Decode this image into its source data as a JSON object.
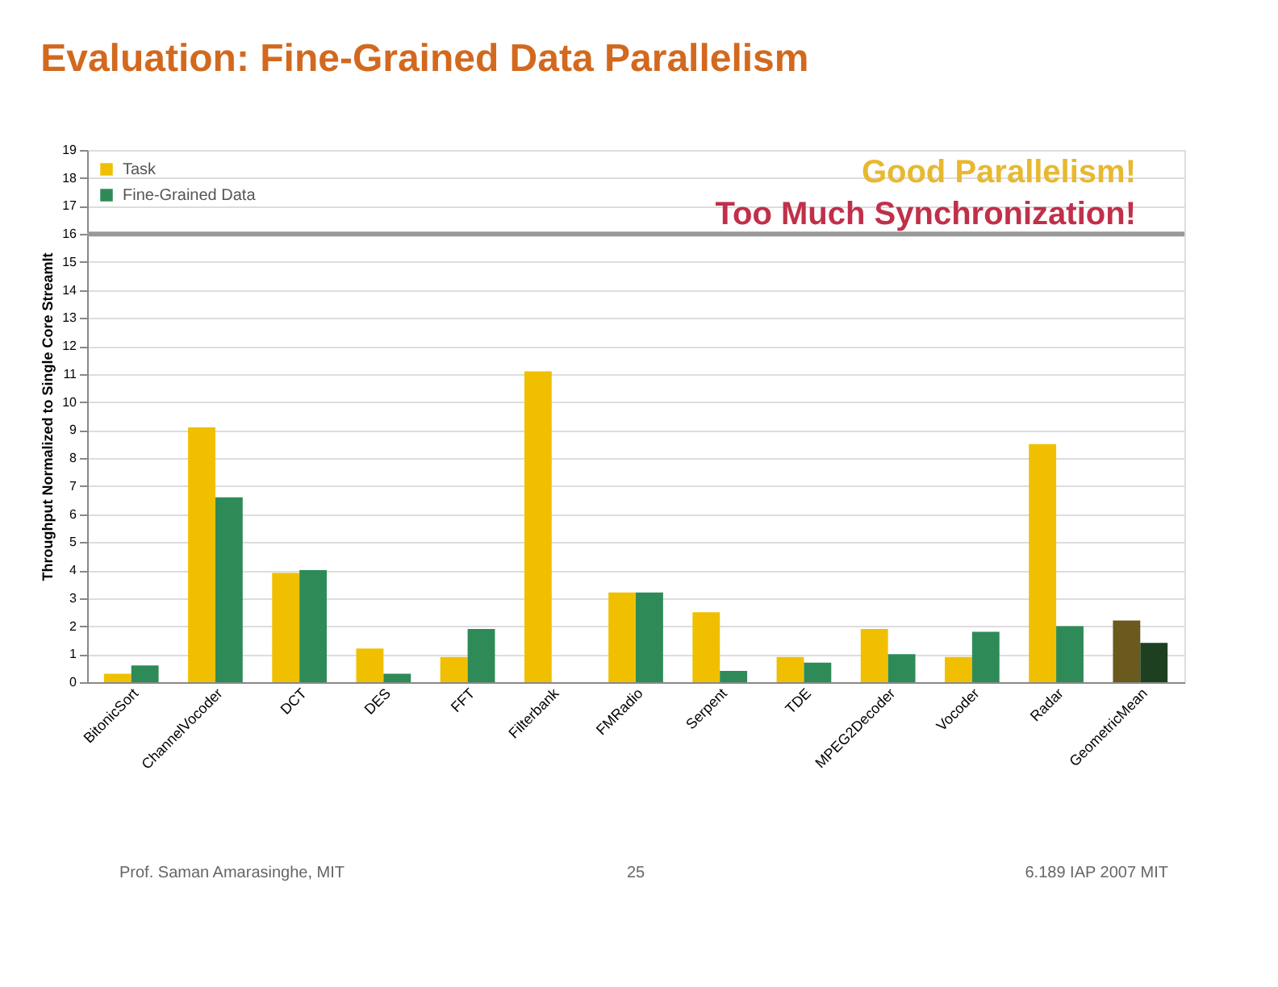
{
  "chart_data": {
    "type": "bar",
    "title": "Evaluation: Fine-Grained Data Parallelism",
    "ylabel": "Throughput Normalized to Single Core StreamIt",
    "categories": [
      "BitonicSort",
      "ChannelVocoder",
      "DCT",
      "DES",
      "FFT",
      "Filterbank",
      "FMRadio",
      "Serpent",
      "TDE",
      "MPEG2Decoder",
      "Vocoder",
      "Radar",
      "GeometricMean"
    ],
    "series": [
      {
        "name": "Task",
        "color": "#f0c000",
        "colors": [
          "#f0c000",
          "#f0c000",
          "#f0c000",
          "#f0c000",
          "#f0c000",
          "#f0c000",
          "#f0c000",
          "#f0c000",
          "#f0c000",
          "#f0c000",
          "#f0c000",
          "#f0c000",
          "#6b5a1e"
        ],
        "values": [
          0.3,
          9.1,
          3.9,
          1.2,
          0.9,
          11.1,
          3.2,
          2.5,
          0.9,
          1.9,
          0.9,
          8.5,
          2.2
        ]
      },
      {
        "name": "Fine-Grained Data",
        "color": "#2e8b57",
        "colors": [
          "#2e8b57",
          "#2e8b57",
          "#2e8b57",
          "#2e8b57",
          "#2e8b57",
          "#2e8b57",
          "#2e8b57",
          "#2e8b57",
          "#2e8b57",
          "#2e8b57",
          "#2e8b57",
          "#2e8b57",
          "#1e4020"
        ],
        "values": [
          0.6,
          6.6,
          4.0,
          0.3,
          1.9,
          0,
          3.2,
          0.4,
          0.7,
          1.0,
          1.8,
          2.0,
          1.4
        ]
      }
    ],
    "ylim": [
      0,
      19
    ],
    "yticks": [
      0,
      1,
      2,
      3,
      4,
      5,
      6,
      7,
      8,
      9,
      10,
      11,
      12,
      13,
      14,
      15,
      16,
      17,
      18,
      19
    ],
    "grid": "y",
    "legend": "top left",
    "ref_lines": [
      {
        "axis": "y",
        "value": 16,
        "color": "#999999"
      }
    ],
    "annotations": [
      "Good Parallelism!",
      "Too Much Synchronization!",
      "Prof. Saman Amarasinghe, MIT",
      "25",
      "6.189 IAP 2007 MIT"
    ]
  }
}
